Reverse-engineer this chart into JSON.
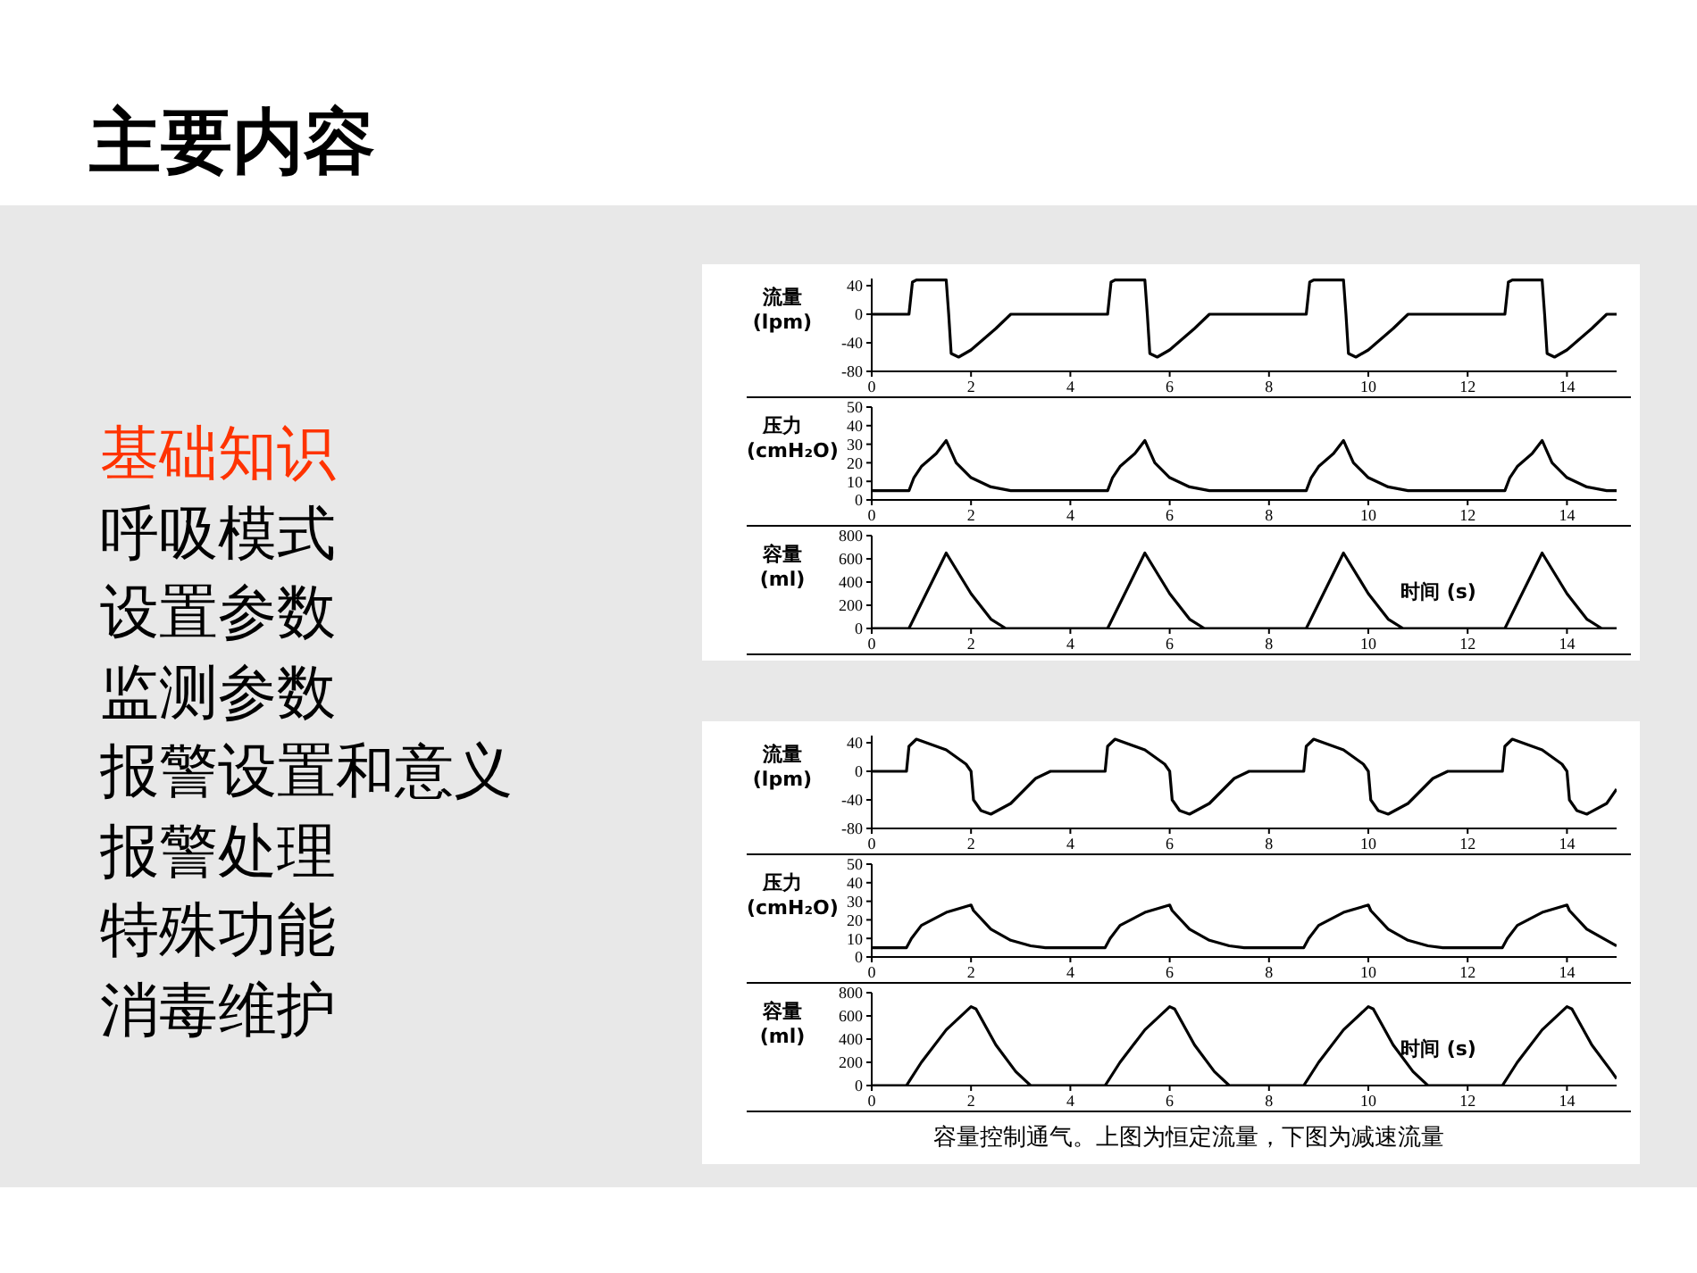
{
  "chart_data": [
    {
      "type": "other",
      "title": "主要内容",
      "annotations": [
        "基础知识",
        "呼吸模式",
        "设置参数",
        "监测参数",
        "报警设置和意义",
        "报警处理",
        "特殊功能",
        "消毒维护"
      ]
    },
    {
      "type": "line",
      "ylabel": "流量 (lpm)",
      "xlim": [
        0,
        15
      ],
      "xticks": [
        0,
        2,
        4,
        6,
        8,
        10,
        12,
        14
      ],
      "ylim": [
        -80,
        50
      ],
      "yticks": [
        -80,
        -40,
        0,
        40
      ],
      "color": "#000000",
      "x": [
        0,
        0.75,
        0.82,
        0.9,
        1.5,
        1.55,
        1.6,
        1.75,
        2.0,
        2.5,
        2.8,
        4.75,
        4.82,
        4.9,
        5.5,
        5.55,
        5.6,
        5.75,
        6.0,
        6.5,
        6.8,
        8.75,
        8.82,
        8.9,
        9.5,
        9.55,
        9.6,
        9.75,
        10.0,
        10.5,
        10.8,
        12.75,
        12.82,
        12.9,
        13.5,
        13.55,
        13.6,
        13.75,
        14.0,
        14.5,
        14.8,
        15
      ],
      "values": [
        0,
        0,
        45,
        48,
        48,
        0,
        -55,
        -60,
        -50,
        -20,
        0,
        0,
        45,
        48,
        48,
        0,
        -55,
        -60,
        -50,
        -20,
        0,
        0,
        45,
        48,
        48,
        0,
        -55,
        -60,
        -50,
        -20,
        0,
        0,
        45,
        48,
        48,
        0,
        -55,
        -60,
        -50,
        -20,
        0,
        0
      ]
    },
    {
      "type": "line",
      "ylabel": "压力 (cmH₂O)",
      "xlim": [
        0,
        15
      ],
      "xticks": [
        0,
        2,
        4,
        6,
        8,
        10,
        12,
        14
      ],
      "ylim": [
        0,
        50
      ],
      "yticks": [
        0,
        10,
        20,
        30,
        40,
        50
      ],
      "color": "#000000",
      "x": [
        0,
        0.75,
        0.85,
        1.0,
        1.3,
        1.5,
        1.7,
        2.0,
        2.4,
        2.8,
        4.75,
        4.85,
        5.0,
        5.3,
        5.5,
        5.7,
        6.0,
        6.4,
        6.8,
        8.75,
        8.85,
        9.0,
        9.3,
        9.5,
        9.7,
        10.0,
        10.4,
        10.8,
        12.75,
        12.85,
        13.0,
        13.3,
        13.5,
        13.7,
        14.0,
        14.4,
        14.8,
        15
      ],
      "values": [
        5,
        5,
        12,
        18,
        25,
        32,
        20,
        12,
        7,
        5,
        5,
        12,
        18,
        25,
        32,
        20,
        12,
        7,
        5,
        5,
        12,
        18,
        25,
        32,
        20,
        12,
        7,
        5,
        5,
        12,
        18,
        25,
        32,
        20,
        12,
        7,
        5,
        5
      ]
    },
    {
      "type": "line",
      "ylabel": "容量 (ml)",
      "annotations": [
        "时间 (s)"
      ],
      "xlim": [
        0,
        15
      ],
      "xticks": [
        0,
        2,
        4,
        6,
        8,
        10,
        12,
        14
      ],
      "ylim": [
        0,
        800
      ],
      "yticks": [
        0,
        200,
        400,
        600,
        800
      ],
      "color": "#000000",
      "x": [
        0,
        0.75,
        1.5,
        2.0,
        2.4,
        2.7,
        4.75,
        5.5,
        6.0,
        6.4,
        6.7,
        8.75,
        9.5,
        10.0,
        10.4,
        10.7,
        12.75,
        13.5,
        14.0,
        14.4,
        14.7,
        15
      ],
      "values": [
        0,
        0,
        650,
        300,
        80,
        0,
        0,
        650,
        300,
        80,
        0,
        0,
        650,
        300,
        80,
        0,
        0,
        650,
        300,
        80,
        0,
        0
      ]
    },
    {
      "type": "line",
      "ylabel": "流量 (lpm)",
      "xlim": [
        0,
        15
      ],
      "xticks": [
        0,
        2,
        4,
        6,
        8,
        10,
        12,
        14
      ],
      "ylim": [
        -80,
        50
      ],
      "yticks": [
        -80,
        -40,
        0,
        40
      ],
      "color": "#000000",
      "x": [
        0,
        0.7,
        0.75,
        0.9,
        1.5,
        1.9,
        2.0,
        2.05,
        2.2,
        2.4,
        2.8,
        3.3,
        3.6,
        4.7,
        4.75,
        4.9,
        5.5,
        5.9,
        6.0,
        6.05,
        6.2,
        6.4,
        6.8,
        7.3,
        7.6,
        8.7,
        8.75,
        8.9,
        9.5,
        9.9,
        10.0,
        10.05,
        10.2,
        10.4,
        10.8,
        11.3,
        11.6,
        12.7,
        12.75,
        12.9,
        13.5,
        13.9,
        14.0,
        14.05,
        14.2,
        14.4,
        14.8,
        15
      ],
      "values": [
        0,
        0,
        35,
        45,
        30,
        10,
        0,
        -40,
        -55,
        -60,
        -45,
        -10,
        0,
        0,
        35,
        45,
        30,
        10,
        0,
        -40,
        -55,
        -60,
        -45,
        -10,
        0,
        0,
        35,
        45,
        30,
        10,
        0,
        -40,
        -55,
        -60,
        -45,
        -10,
        0,
        0,
        35,
        45,
        30,
        10,
        0,
        -40,
        -55,
        -60,
        -45,
        -25
      ]
    },
    {
      "type": "line",
      "ylabel": "压力 (cmH₂O)",
      "xlim": [
        0,
        15
      ],
      "xticks": [
        0,
        2,
        4,
        6,
        8,
        10,
        12,
        14
      ],
      "ylim": [
        0,
        50
      ],
      "yticks": [
        0,
        10,
        20,
        30,
        40,
        50
      ],
      "color": "#000000",
      "x": [
        0,
        0.7,
        0.8,
        1.0,
        1.5,
        2.0,
        2.05,
        2.4,
        2.8,
        3.2,
        3.5,
        4.7,
        4.8,
        5.0,
        5.5,
        6.0,
        6.05,
        6.4,
        6.8,
        7.2,
        7.5,
        8.7,
        8.8,
        9.0,
        9.5,
        10.0,
        10.05,
        10.4,
        10.8,
        11.2,
        11.5,
        12.7,
        12.8,
        13.0,
        13.5,
        14.0,
        14.05,
        14.4,
        14.8,
        15
      ],
      "values": [
        5,
        5,
        10,
        17,
        24,
        28,
        25,
        15,
        9,
        6,
        5,
        5,
        10,
        17,
        24,
        28,
        25,
        15,
        9,
        6,
        5,
        5,
        10,
        17,
        24,
        28,
        25,
        15,
        9,
        6,
        5,
        5,
        10,
        17,
        24,
        28,
        25,
        15,
        9,
        6
      ]
    },
    {
      "type": "line",
      "ylabel": "容量 (ml)",
      "annotations": [
        "时间 (s)",
        "容量控制通气。上图为恒定流量，下图为减速流量"
      ],
      "xlim": [
        0,
        15
      ],
      "xticks": [
        0,
        2,
        4,
        6,
        8,
        10,
        12,
        14
      ],
      "ylim": [
        0,
        800
      ],
      "yticks": [
        0,
        200,
        400,
        600,
        800
      ],
      "color": "#000000",
      "x": [
        0,
        0.7,
        1.0,
        1.5,
        2.0,
        2.1,
        2.5,
        2.9,
        3.2,
        4.7,
        5.0,
        5.5,
        6.0,
        6.1,
        6.5,
        6.9,
        7.2,
        8.7,
        9.0,
        9.5,
        10.0,
        10.1,
        10.5,
        10.9,
        11.2,
        12.7,
        13.0,
        13.5,
        14.0,
        14.1,
        14.5,
        14.9,
        15
      ],
      "values": [
        0,
        0,
        200,
        480,
        680,
        660,
        350,
        120,
        0,
        0,
        200,
        480,
        680,
        660,
        350,
        120,
        0,
        0,
        200,
        480,
        680,
        660,
        350,
        120,
        0,
        0,
        200,
        480,
        680,
        660,
        350,
        120,
        60
      ]
    }
  ]
}
